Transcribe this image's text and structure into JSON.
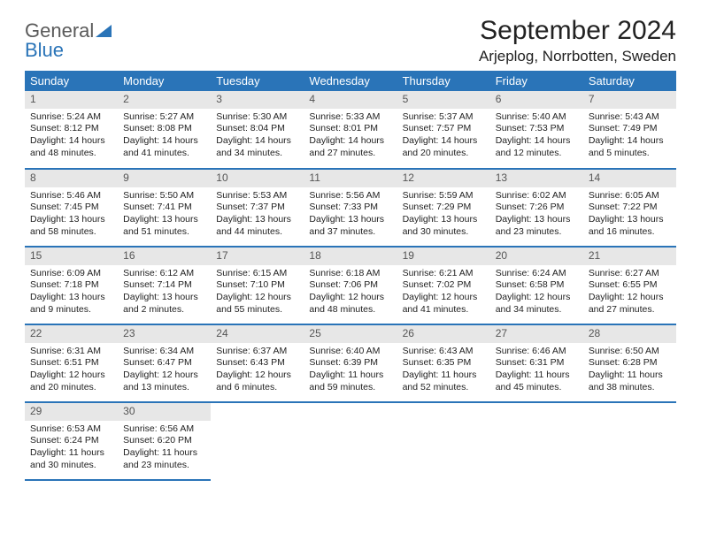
{
  "brand": {
    "part1": "General",
    "part2": "Blue"
  },
  "title": "September 2024",
  "location": "Arjeplog, Norrbotten, Sweden",
  "colors": {
    "header_bg": "#2a74b8",
    "header_text": "#ffffff",
    "daynum_bg": "#e7e7e7",
    "body_bg": "#ffffff",
    "border": "#2a74b8"
  },
  "typography": {
    "title_fontsize": 30,
    "location_fontsize": 17,
    "th_fontsize": 13,
    "cell_fontsize": 10.5
  },
  "days_of_week": [
    "Sunday",
    "Monday",
    "Tuesday",
    "Wednesday",
    "Thursday",
    "Friday",
    "Saturday"
  ],
  "weeks": [
    [
      {
        "n": "1",
        "sr": "5:24 AM",
        "ss": "8:12 PM",
        "dl": "14 hours and 48 minutes."
      },
      {
        "n": "2",
        "sr": "5:27 AM",
        "ss": "8:08 PM",
        "dl": "14 hours and 41 minutes."
      },
      {
        "n": "3",
        "sr": "5:30 AM",
        "ss": "8:04 PM",
        "dl": "14 hours and 34 minutes."
      },
      {
        "n": "4",
        "sr": "5:33 AM",
        "ss": "8:01 PM",
        "dl": "14 hours and 27 minutes."
      },
      {
        "n": "5",
        "sr": "5:37 AM",
        "ss": "7:57 PM",
        "dl": "14 hours and 20 minutes."
      },
      {
        "n": "6",
        "sr": "5:40 AM",
        "ss": "7:53 PM",
        "dl": "14 hours and 12 minutes."
      },
      {
        "n": "7",
        "sr": "5:43 AM",
        "ss": "7:49 PM",
        "dl": "14 hours and 5 minutes."
      }
    ],
    [
      {
        "n": "8",
        "sr": "5:46 AM",
        "ss": "7:45 PM",
        "dl": "13 hours and 58 minutes."
      },
      {
        "n": "9",
        "sr": "5:50 AM",
        "ss": "7:41 PM",
        "dl": "13 hours and 51 minutes."
      },
      {
        "n": "10",
        "sr": "5:53 AM",
        "ss": "7:37 PM",
        "dl": "13 hours and 44 minutes."
      },
      {
        "n": "11",
        "sr": "5:56 AM",
        "ss": "7:33 PM",
        "dl": "13 hours and 37 minutes."
      },
      {
        "n": "12",
        "sr": "5:59 AM",
        "ss": "7:29 PM",
        "dl": "13 hours and 30 minutes."
      },
      {
        "n": "13",
        "sr": "6:02 AM",
        "ss": "7:26 PM",
        "dl": "13 hours and 23 minutes."
      },
      {
        "n": "14",
        "sr": "6:05 AM",
        "ss": "7:22 PM",
        "dl": "13 hours and 16 minutes."
      }
    ],
    [
      {
        "n": "15",
        "sr": "6:09 AM",
        "ss": "7:18 PM",
        "dl": "13 hours and 9 minutes."
      },
      {
        "n": "16",
        "sr": "6:12 AM",
        "ss": "7:14 PM",
        "dl": "13 hours and 2 minutes."
      },
      {
        "n": "17",
        "sr": "6:15 AM",
        "ss": "7:10 PM",
        "dl": "12 hours and 55 minutes."
      },
      {
        "n": "18",
        "sr": "6:18 AM",
        "ss": "7:06 PM",
        "dl": "12 hours and 48 minutes."
      },
      {
        "n": "19",
        "sr": "6:21 AM",
        "ss": "7:02 PM",
        "dl": "12 hours and 41 minutes."
      },
      {
        "n": "20",
        "sr": "6:24 AM",
        "ss": "6:58 PM",
        "dl": "12 hours and 34 minutes."
      },
      {
        "n": "21",
        "sr": "6:27 AM",
        "ss": "6:55 PM",
        "dl": "12 hours and 27 minutes."
      }
    ],
    [
      {
        "n": "22",
        "sr": "6:31 AM",
        "ss": "6:51 PM",
        "dl": "12 hours and 20 minutes."
      },
      {
        "n": "23",
        "sr": "6:34 AM",
        "ss": "6:47 PM",
        "dl": "12 hours and 13 minutes."
      },
      {
        "n": "24",
        "sr": "6:37 AM",
        "ss": "6:43 PM",
        "dl": "12 hours and 6 minutes."
      },
      {
        "n": "25",
        "sr": "6:40 AM",
        "ss": "6:39 PM",
        "dl": "11 hours and 59 minutes."
      },
      {
        "n": "26",
        "sr": "6:43 AM",
        "ss": "6:35 PM",
        "dl": "11 hours and 52 minutes."
      },
      {
        "n": "27",
        "sr": "6:46 AM",
        "ss": "6:31 PM",
        "dl": "11 hours and 45 minutes."
      },
      {
        "n": "28",
        "sr": "6:50 AM",
        "ss": "6:28 PM",
        "dl": "11 hours and 38 minutes."
      }
    ],
    [
      {
        "n": "29",
        "sr": "6:53 AM",
        "ss": "6:24 PM",
        "dl": "11 hours and 30 minutes."
      },
      {
        "n": "30",
        "sr": "6:56 AM",
        "ss": "6:20 PM",
        "dl": "11 hours and 23 minutes."
      },
      null,
      null,
      null,
      null,
      null
    ]
  ],
  "labels": {
    "sunrise": "Sunrise: ",
    "sunset": "Sunset: ",
    "daylight": "Daylight: "
  }
}
